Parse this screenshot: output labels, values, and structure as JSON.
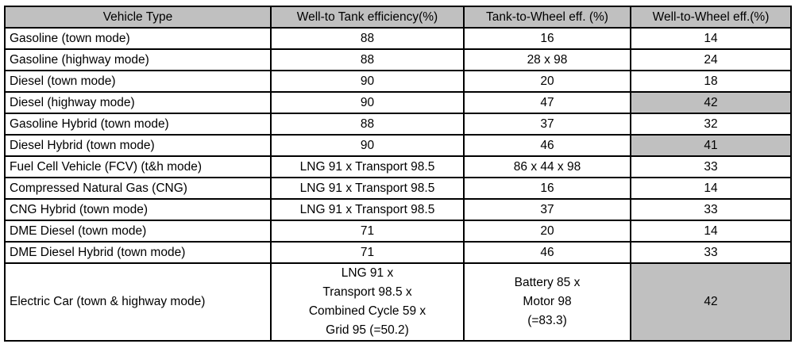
{
  "headers": [
    "Vehicle Type",
    "Well-to Tank efficiency(%)",
    "Tank-to-Wheel eff. (%)",
    "Well-to-Wheel eff.(%)"
  ],
  "highlight_color": "#c0c0c0",
  "rows": [
    {
      "type": "Gasoline (town mode)",
      "wtt": "88",
      "ttw": "16",
      "wtw": "14",
      "highlight": false
    },
    {
      "type": "Gasoline (highway mode)",
      "wtt": "88",
      "ttw": "28 x 98",
      "wtw": "24",
      "highlight": false
    },
    {
      "type": "Diesel (town mode)",
      "wtt": "90",
      "ttw": "20",
      "wtw": "18",
      "highlight": false
    },
    {
      "type": "Diesel (highway mode)",
      "wtt": "90",
      "ttw": "47",
      "wtw": "42",
      "highlight": true
    },
    {
      "type": "Gasoline Hybrid (town mode)",
      "wtt": "88",
      "ttw": "37",
      "wtw": "32",
      "highlight": false
    },
    {
      "type": "Diesel Hybrid (town mode)",
      "wtt": "90",
      "ttw": "46",
      "wtw": "41",
      "highlight": true
    },
    {
      "type": "Fuel Cell Vehicle (FCV) (t&h mode)",
      "wtt": "LNG 91 x Transport 98.5",
      "ttw": "86 x 44 x 98",
      "wtw": "33",
      "highlight": false
    },
    {
      "type": "Compressed Natural Gas (CNG)",
      "wtt": "LNG  91 x Transport 98.5",
      "ttw": "16",
      "wtw": "14",
      "highlight": false
    },
    {
      "type": "CNG Hybrid (town mode)",
      "wtt": "LNG 91 x Transport 98.5",
      "ttw": "37",
      "wtw": "33",
      "highlight": false
    },
    {
      "type": "DME Diesel (town mode)",
      "wtt": "71",
      "ttw": "20",
      "wtw": "14",
      "highlight": false
    },
    {
      "type": "DME Diesel Hybrid (town mode)",
      "wtt": "71",
      "ttw": "46",
      "wtw": "33",
      "highlight": false
    }
  ],
  "electric": {
    "type": "Electric Car (town & highway mode)",
    "wtt_lines": [
      "LNG 91 x",
      "Transport 98.5 x",
      "Combined Cycle 59 x",
      "Grid 95 (=50.2)"
    ],
    "ttw_lines": [
      "Battery 85 x",
      "Motor 98",
      "(=83.3)"
    ],
    "wtw": "42"
  }
}
